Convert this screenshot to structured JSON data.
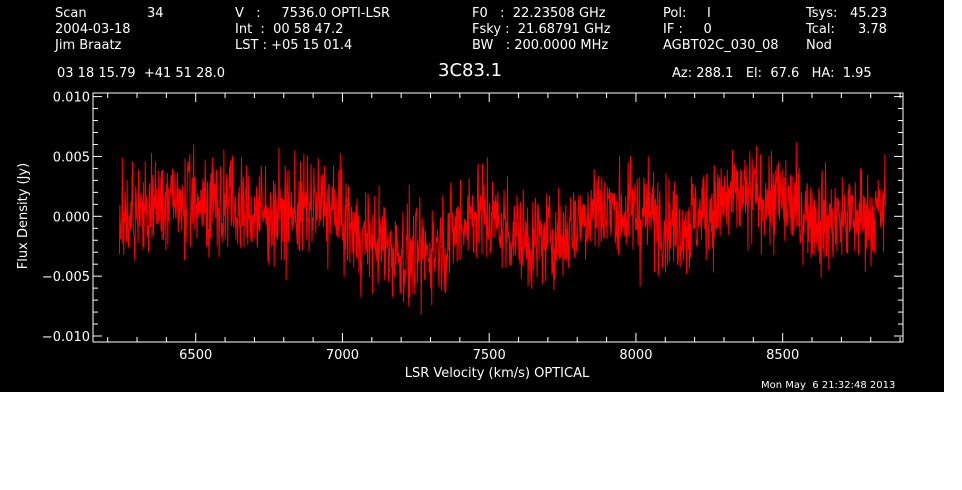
{
  "header": {
    "scan_label": "Scan",
    "scan_value": "34",
    "date": "2004-03-18",
    "observer": "Jim Braatz",
    "v_line": "V   :     7536.0 OPTI-LSR",
    "int_line": "Int  :  00 58 47.2",
    "lst_line": "LST : +05 15 01.4",
    "f0_line": "F0   :  22.23508 GHz",
    "fsky_line": "Fsky :  21.68791 GHz",
    "bw_line": "BW   : 200.0000 MHz",
    "pol_line": "Pol:     I",
    "if_line": "IF :     0",
    "proj_line": "AGBT02C_030_08",
    "tsys_label": "Tsys:",
    "tsys_value": "45.23",
    "tcal_label": "Tcal:",
    "tcal_value": "3.78",
    "nod": "Nod",
    "coords": "03 18 15.79  +41 51 28.0",
    "source": "3C83.1",
    "az_el_ha": "Az: 288.1   El:  67.6   HA:  1.95"
  },
  "timestamp": "Mon May  6 21:32:48 2013",
  "colors": {
    "background": "#000000",
    "axes": "#ffffff",
    "trace": "#ff0000"
  },
  "chart_data": {
    "type": "line",
    "title": "3C83.1",
    "xlabel": "LSR Velocity (km/s) OPTICAL",
    "ylabel": "Flux Density (Jy)",
    "xlim": [
      6150,
      8910
    ],
    "ylim": [
      -0.0105,
      0.0103
    ],
    "x_ticks": [
      6500,
      7000,
      7500,
      8000,
      8500
    ],
    "x_tick_labels": [
      "6500",
      "7000",
      "7500",
      "8000",
      "8500"
    ],
    "y_ticks": [
      0.01,
      0.005,
      0.0,
      -0.005,
      -0.01
    ],
    "y_tick_labels": [
      "0.010",
      "0.005",
      "0.000",
      "−0.005",
      "−0.010"
    ],
    "series": [
      {
        "color": "#ff0000",
        "x_range": [
          6240,
          8850
        ],
        "noise_rms": 0.0025,
        "envelope_x": [
          6240,
          6350,
          6450,
          6550,
          6650,
          6750,
          6850,
          6950,
          7050,
          7150,
          7250,
          7350,
          7450,
          7550,
          7650,
          7750,
          7850,
          7950,
          8050,
          8150,
          8250,
          8350,
          8450,
          8550,
          8650,
          8750,
          8850
        ],
        "envelope_y": [
          -0.0008,
          0.0008,
          0.0012,
          0.0014,
          0.0005,
          0.0002,
          0.0006,
          0.0008,
          -0.0015,
          -0.0025,
          -0.0035,
          -0.002,
          0.0005,
          -0.0008,
          -0.0022,
          -0.0015,
          0.0008,
          0.0004,
          0.0001,
          -0.0008,
          0.0006,
          0.0016,
          0.0016,
          0.0006,
          -0.0004,
          0.0,
          0.0004
        ]
      }
    ]
  }
}
